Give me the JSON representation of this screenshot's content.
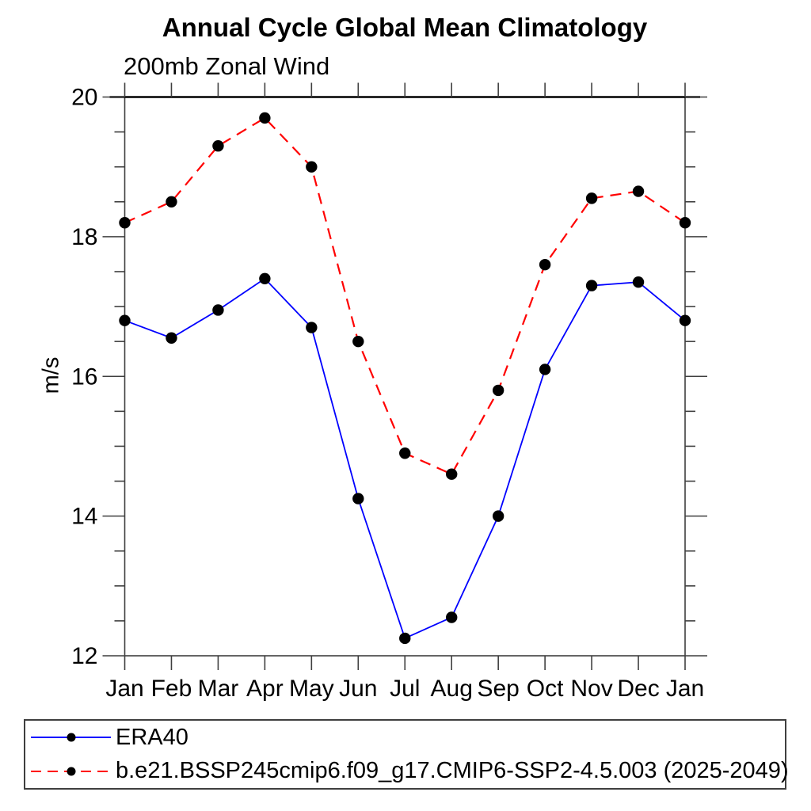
{
  "header": {
    "title": "Annual Cycle Global Mean Climatology",
    "subtitle": "200mb Zonal Wind"
  },
  "chart_data": {
    "type": "line",
    "title": "Annual Cycle Global Mean Climatology",
    "left_string": "200mb Zonal Wind",
    "ylabel": "m/s",
    "xlabel": "",
    "ylim": [
      12,
      20
    ],
    "y_major_ticks": [
      12,
      14,
      16,
      18,
      20
    ],
    "y_minor_step": 0.5,
    "grid": false,
    "legend_position": "bottom-left-box",
    "marker": "filled-circle",
    "marker_color": "#000000",
    "axis_color": "#3f3f3f",
    "categories": [
      "Jan",
      "Feb",
      "Mar",
      "Apr",
      "May",
      "Jun",
      "Jul",
      "Aug",
      "Sep",
      "Oct",
      "Nov",
      "Dec",
      "Jan"
    ],
    "series": [
      {
        "name": "ERA40",
        "color": "#0000ff",
        "line_style": "solid",
        "values": [
          16.8,
          16.55,
          16.95,
          17.4,
          16.7,
          14.25,
          12.25,
          12.55,
          14.0,
          16.1,
          17.3,
          17.35,
          16.8
        ]
      },
      {
        "name": "b.e21.BSSP245cmip6.f09_g17.CMIP6-SSP2-4.5.003 (2025-2049)",
        "color": "#ff0000",
        "line_style": "dashed",
        "values": [
          18.2,
          18.5,
          19.3,
          19.7,
          19.0,
          16.5,
          14.9,
          14.6,
          15.8,
          17.6,
          18.55,
          18.65,
          18.2
        ]
      }
    ]
  }
}
